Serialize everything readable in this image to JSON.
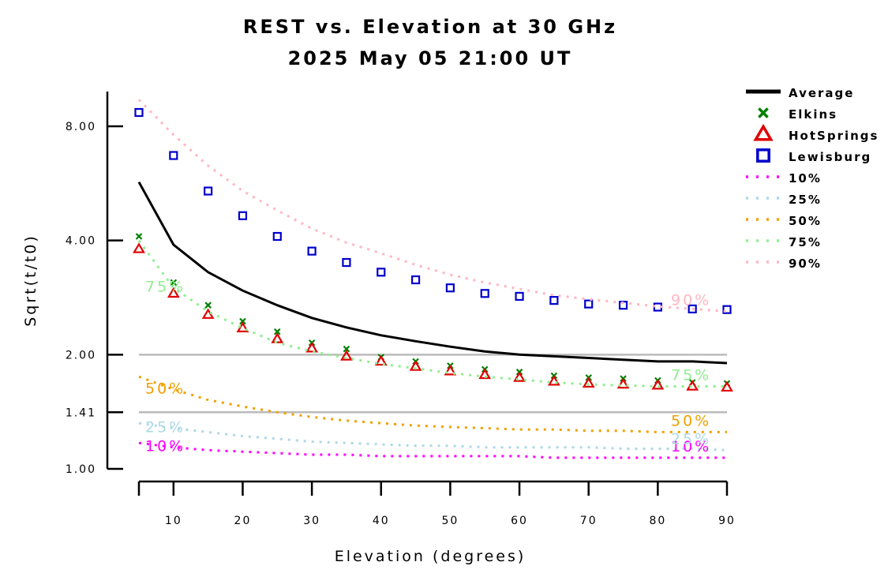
{
  "chart_data": {
    "type": "line",
    "title": "REST vs. Elevation at 30 GHz",
    "subtitle": "2025 May 05 21:00 UT",
    "xlabel": "Elevation (degrees)",
    "ylabel": "Sqrt(t/t0)",
    "xlim": [
      5,
      90
    ],
    "ylim": [
      1.0,
      8.7
    ],
    "yscale": "log",
    "xticks": [
      10,
      20,
      30,
      40,
      50,
      60,
      70,
      80,
      90
    ],
    "xtick_labels": [
      "10",
      "20",
      "30",
      "40",
      "50",
      "60",
      "70",
      "80",
      "90"
    ],
    "yticks": [
      1.0,
      1.41,
      2.0,
      4.0,
      8.0
    ],
    "ytick_labels": [
      "1.00",
      "1.41",
      "2.00",
      "4.00",
      "8.00"
    ],
    "reference_lines": [
      {
        "y": 1.41,
        "color": "#bbbbbb"
      },
      {
        "y": 2.0,
        "color": "#bbbbbb"
      }
    ],
    "legend_position": "right",
    "x": [
      5,
      10,
      15,
      20,
      25,
      30,
      35,
      40,
      45,
      50,
      55,
      60,
      65,
      70,
      75,
      80,
      85,
      90
    ],
    "series": [
      {
        "name": "Average",
        "kind": "line",
        "color": "#000000",
        "values": [
          5.7,
          3.9,
          3.3,
          2.95,
          2.7,
          2.5,
          2.36,
          2.25,
          2.17,
          2.1,
          2.04,
          2.0,
          1.98,
          1.96,
          1.94,
          1.92,
          1.92,
          1.9
        ]
      },
      {
        "name": "Elkins",
        "kind": "marker",
        "marker": "x",
        "color": "#008000",
        "values": [
          4.1,
          3.1,
          2.7,
          2.45,
          2.3,
          2.15,
          2.07,
          1.97,
          1.92,
          1.87,
          1.83,
          1.8,
          1.76,
          1.74,
          1.73,
          1.71,
          1.69,
          1.68
        ]
      },
      {
        "name": "HotSprings",
        "kind": "marker",
        "marker": "triangle",
        "color": "#e00000",
        "values": [
          3.8,
          2.9,
          2.55,
          2.35,
          2.2,
          2.08,
          1.98,
          1.92,
          1.86,
          1.81,
          1.77,
          1.74,
          1.7,
          1.68,
          1.67,
          1.66,
          1.65,
          1.64
        ]
      },
      {
        "name": "Lewisburg",
        "kind": "marker",
        "marker": "square",
        "color": "#0000cc",
        "values": [
          8.7,
          6.7,
          5.4,
          4.65,
          4.1,
          3.75,
          3.5,
          3.3,
          3.15,
          3.0,
          2.9,
          2.85,
          2.78,
          2.72,
          2.7,
          2.67,
          2.64,
          2.63
        ]
      },
      {
        "name": "10%",
        "kind": "dotted",
        "color": "#ff00ff",
        "label": "10%",
        "values": [
          1.17,
          1.14,
          1.12,
          1.11,
          1.1,
          1.09,
          1.09,
          1.08,
          1.08,
          1.08,
          1.08,
          1.08,
          1.07,
          1.07,
          1.07,
          1.07,
          1.07,
          1.07
        ]
      },
      {
        "name": "25%",
        "kind": "dotted",
        "color": "#add8e6",
        "label": "25%",
        "values": [
          1.32,
          1.28,
          1.25,
          1.22,
          1.2,
          1.18,
          1.17,
          1.16,
          1.15,
          1.15,
          1.14,
          1.14,
          1.14,
          1.14,
          1.13,
          1.13,
          1.13,
          1.12
        ]
      },
      {
        "name": "50%",
        "kind": "dotted",
        "color": "#f0a000",
        "label": "50%",
        "values": [
          1.75,
          1.62,
          1.52,
          1.46,
          1.41,
          1.37,
          1.34,
          1.32,
          1.3,
          1.29,
          1.28,
          1.27,
          1.27,
          1.26,
          1.26,
          1.25,
          1.25,
          1.25
        ]
      },
      {
        "name": "75%",
        "kind": "dotted",
        "color": "#90ee90",
        "label": "75%",
        "values": [
          4.0,
          3.0,
          2.6,
          2.35,
          2.15,
          2.04,
          1.96,
          1.89,
          1.84,
          1.79,
          1.75,
          1.72,
          1.69,
          1.67,
          1.66,
          1.65,
          1.65,
          1.65
        ]
      },
      {
        "name": "90%",
        "kind": "dotted",
        "color": "#ffb6c1",
        "label": "90%",
        "values": [
          9.4,
          7.6,
          6.3,
          5.4,
          4.8,
          4.3,
          3.95,
          3.7,
          3.45,
          3.25,
          3.1,
          2.98,
          2.87,
          2.8,
          2.74,
          2.68,
          2.64,
          2.6
        ]
      }
    ]
  }
}
